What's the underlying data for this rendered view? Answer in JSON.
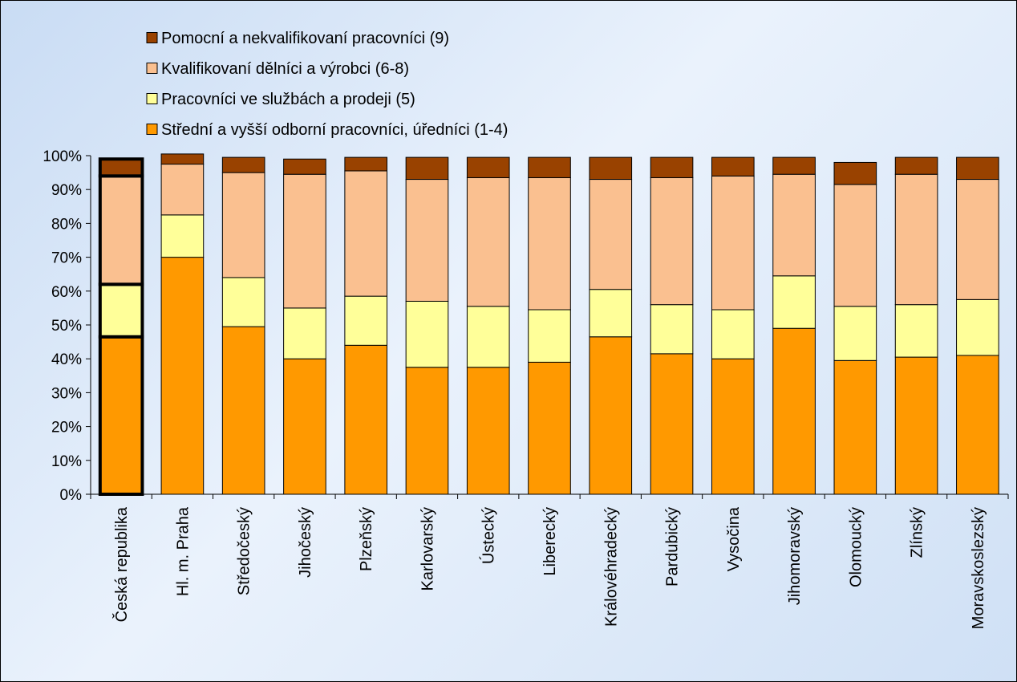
{
  "chart_data": {
    "type": "bar",
    "stacked": true,
    "title": "",
    "xlabel": "",
    "ylabel": "",
    "ylim": [
      0,
      100
    ],
    "ytick_labels": [
      "0%",
      "10%",
      "20%",
      "30%",
      "40%",
      "50%",
      "60%",
      "70%",
      "80%",
      "90%",
      "100%"
    ],
    "legend_position": "top",
    "highlighted_category": "Česká republika",
    "categories": [
      "Česká republika",
      "Hl. m. Praha",
      "Středočeský",
      "Jihočeský",
      "Plzeňský",
      "Karlovarský",
      "Ústecký",
      "Liberecký",
      "Královéhradecký",
      "Pardubický",
      "Vysočina",
      "Jihomoravský",
      "Olomoucký",
      "Zlínský",
      "Moravskoslezský"
    ],
    "series": [
      {
        "name": "Střední a vyšší odborní pracovníci, úředníci (1-4)",
        "color": "#ff9900",
        "values": [
          46.5,
          70.0,
          49.5,
          40.0,
          44.0,
          37.5,
          37.5,
          39.0,
          46.5,
          41.5,
          40.0,
          49.0,
          39.5,
          40.5,
          41.0
        ]
      },
      {
        "name": "Pracovníci ve službách a prodeji (5)",
        "color": "#ffff99",
        "values": [
          15.5,
          12.5,
          14.5,
          15.0,
          14.5,
          19.5,
          18.0,
          15.5,
          14.0,
          14.5,
          14.5,
          15.5,
          16.0,
          15.5,
          16.5
        ]
      },
      {
        "name": "Kvalifikovaní dělníci a výrobci (6-8)",
        "color": "#fac090",
        "values": [
          32.0,
          15.0,
          31.0,
          39.5,
          37.0,
          36.0,
          38.0,
          39.0,
          32.5,
          37.5,
          39.5,
          30.0,
          36.0,
          38.5,
          35.5
        ]
      },
      {
        "name": "Pomocní a nekvalifikovaní pracovníci (9)",
        "color": "#994200",
        "values": [
          5.0,
          3.0,
          4.5,
          4.5,
          4.0,
          6.5,
          6.0,
          6.0,
          6.5,
          6.0,
          5.5,
          5.0,
          6.5,
          5.0,
          6.5
        ]
      }
    ]
  }
}
